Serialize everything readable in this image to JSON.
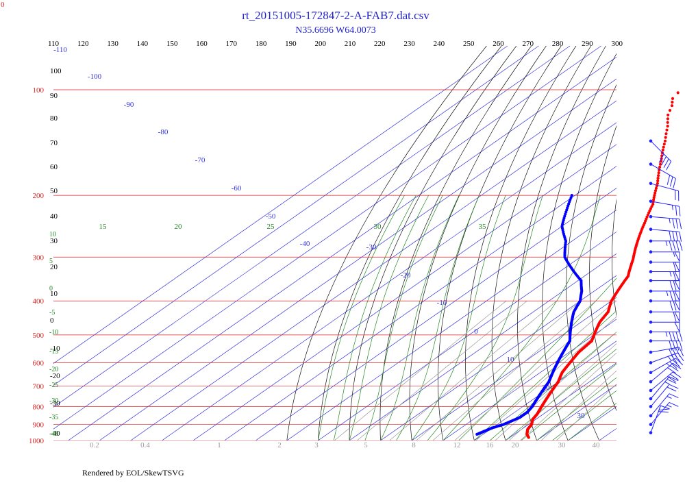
{
  "title": "rt_20151005-172847-2-A-FAB7.dat.csv",
  "subtitle": "N35.6696 W64.0073",
  "footer": "Rendered by EOL/SkewTSVG",
  "corner_label": "0",
  "colors": {
    "title": "#2222cc",
    "pressure": "#dd2222",
    "isotherm": "#3333dd",
    "dry_adiabat": "#111111",
    "moist_adiabat": "#228822",
    "mixing_ratio": "#999999",
    "temperature": "#ff0000",
    "dewpoint": "#0000ff",
    "wind": "#2222ff"
  },
  "chart_data": {
    "type": "scatter",
    "pressure_levels": [
      100,
      200,
      300,
      400,
      500,
      600,
      700,
      800,
      900,
      1000
    ],
    "top_scale_labels": [
      "110",
      "120",
      "130",
      "140",
      "150",
      "160",
      "170",
      "180",
      "190",
      "200",
      "210",
      "220",
      "230",
      "240",
      "250",
      "260",
      "270",
      "280",
      "290",
      "300"
    ],
    "isotherm_labels": [
      "-100",
      "-90",
      "-80",
      "-70",
      "-60",
      "-50",
      "-40",
      "-30",
      "-20",
      "-10",
      "0",
      "10",
      "20",
      "30"
    ],
    "isotherm_left_label": "-110",
    "dry_adiabat_labels": [
      "100",
      "90",
      "80",
      "70",
      "60",
      "50",
      "40",
      "30",
      "20",
      "10",
      "0",
      "-10",
      "-20",
      "-30",
      "-40"
    ],
    "moist_adiabat_labels": [
      "15",
      "20",
      "25",
      "30",
      "35"
    ],
    "moist_adiabat_left_labels": [
      "10",
      "5",
      "0",
      "-5",
      "-10",
      "-15",
      "-20",
      "-25",
      "-30",
      "-35",
      "-40"
    ],
    "mixing_ratio_labels": [
      "0.2",
      "0.4",
      "1",
      "2",
      "3",
      "5",
      "8",
      "12",
      "16",
      "20",
      "30",
      "40"
    ],
    "temperature": {
      "p": [
        77,
        79,
        81,
        83,
        85,
        87,
        89,
        91,
        93,
        95,
        97,
        99,
        102,
        106,
        111,
        118,
        127,
        140,
        160,
        185,
        212,
        240,
        270,
        305,
        340,
        370,
        400,
        430,
        460,
        490,
        520,
        560,
        600,
        640,
        680,
        720,
        760,
        800,
        840,
        870,
        900,
        930,
        960,
        980
      ],
      "t": [
        -75,
        -78,
        -79,
        -79,
        -82,
        -81,
        -82,
        -83,
        -81,
        -81,
        -82,
        -82,
        -84,
        -83,
        -80,
        -77,
        -72,
        -66,
        -58,
        -49,
        -41,
        -35,
        -29,
        -22,
        -16,
        -13,
        -10,
        -6,
        -4,
        -1,
        2,
        3,
        5,
        7,
        10,
        12,
        14,
        16,
        18,
        19,
        21,
        22,
        24,
        26
      ]
    },
    "dewpoint": {
      "p": [
        200,
        220,
        245,
        270,
        300,
        325,
        350,
        375,
        400,
        430,
        460,
        490,
        520,
        560,
        600,
        640,
        680,
        720,
        760,
        800,
        830,
        860,
        900,
        920,
        940,
        960
      ],
      "t": [
        -71,
        -66,
        -60,
        -52,
        -45,
        -37,
        -29,
        -24,
        -20,
        -17,
        -13,
        -9,
        -5,
        -2,
        1,
        4,
        7,
        9,
        11,
        13,
        14,
        14,
        12,
        10,
        9,
        8
      ]
    },
    "wind_barbs": {
      "p": [
        140,
        163,
        185,
        208,
        230,
        250,
        270,
        290,
        310,
        330,
        350,
        375,
        400,
        430,
        460,
        490,
        520,
        560,
        600,
        640,
        680,
        720,
        760,
        800,
        850,
        900,
        950
      ],
      "speed_kt": [
        40,
        30,
        20,
        25,
        35,
        40,
        45,
        55,
        60,
        65,
        70,
        75,
        70,
        60,
        50,
        45,
        40,
        40,
        35,
        35,
        30,
        30,
        25,
        20,
        15,
        15,
        60
      ],
      "direction_deg": [
        315,
        300,
        285,
        280,
        275,
        275,
        270,
        270,
        270,
        270,
        270,
        270,
        270,
        270,
        270,
        270,
        270,
        260,
        250,
        240,
        230,
        230,
        220,
        220,
        220,
        220,
        200
      ]
    }
  }
}
